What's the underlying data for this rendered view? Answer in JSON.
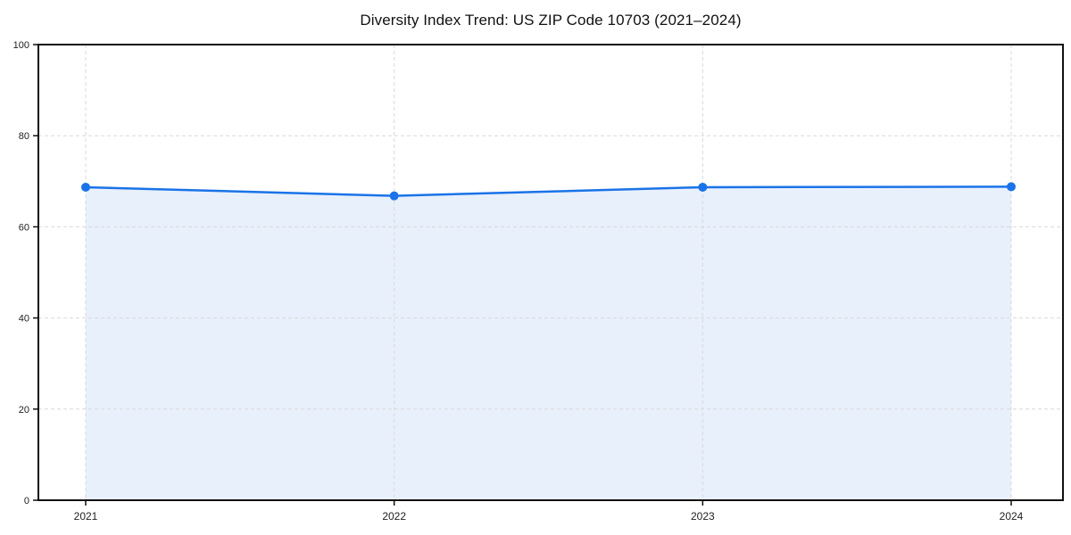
{
  "page": {
    "background": "#ffffff"
  },
  "chart_data": {
    "type": "area",
    "title": "Diversity Index Trend: US ZIP Code 10703 (2021–2024)",
    "categories": [
      "2021",
      "2022",
      "2023",
      "2024"
    ],
    "series": [
      {
        "name": "Diversity Index",
        "values": [
          68.7,
          66.8,
          68.7,
          68.8
        ]
      }
    ],
    "xlabel": "",
    "ylabel": "",
    "ylim": [
      0,
      100
    ],
    "yticks": [
      0,
      20,
      40,
      60,
      80,
      100
    ],
    "grid": true,
    "grid_style": "dashed",
    "legend_position": "none",
    "line_color": "#1a73e8",
    "marker_color": "#1a73e8",
    "fill_color": "#e8f0fc",
    "grid_color": "#d9d9d9",
    "axis_color": "#111111",
    "tick_label_color": "#222222",
    "title_color": "#111111"
  }
}
